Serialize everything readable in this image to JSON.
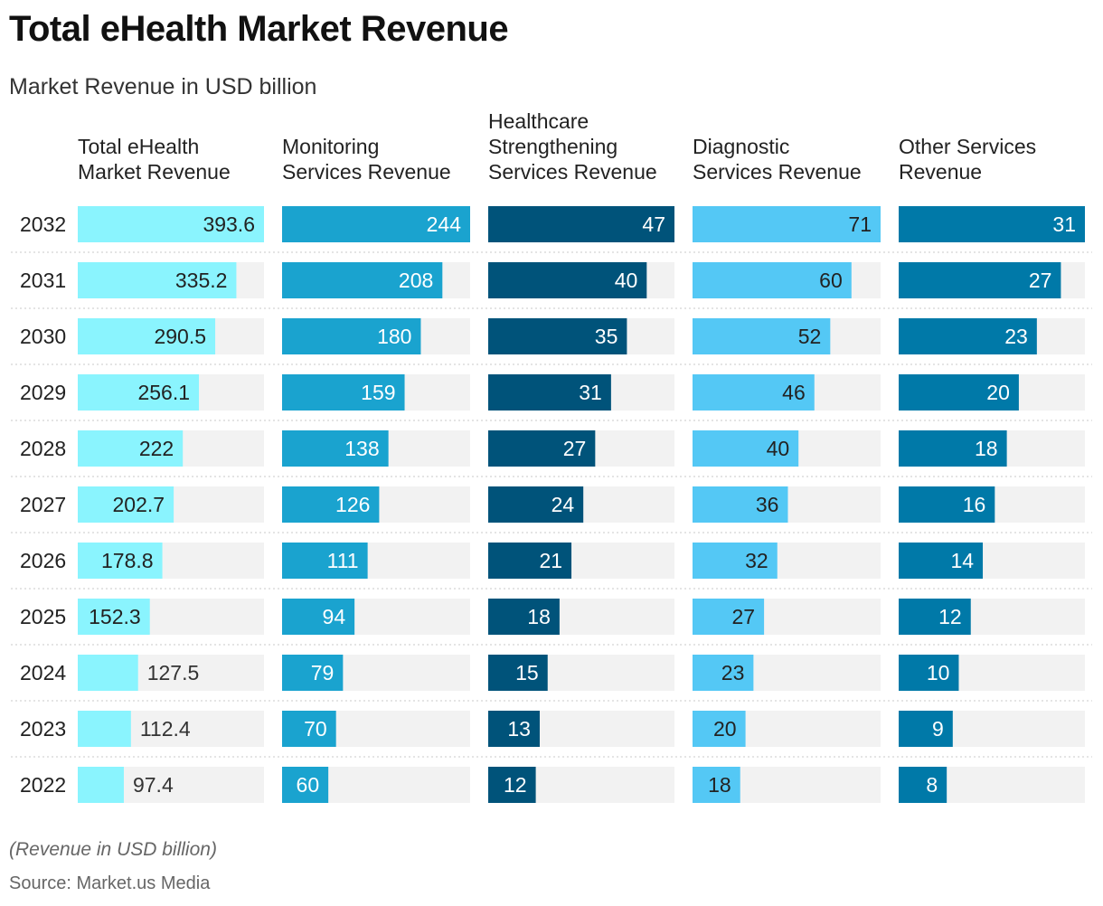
{
  "chart_data": {
    "type": "bar",
    "title": "Total eHealth Market Revenue",
    "subtitle": "Market Revenue in USD billion",
    "categories": [
      "2032",
      "2031",
      "2030",
      "2029",
      "2028",
      "2027",
      "2026",
      "2025",
      "2024",
      "2023",
      "2022"
    ],
    "series": [
      {
        "name": "Total eHealth Market Revenue",
        "label_lines": [
          "Total eHealth",
          "Market Revenue"
        ],
        "color": "#8af4fe",
        "values": [
          393.6,
          335.2,
          290.5,
          256.1,
          222,
          202.7,
          178.8,
          152.3,
          127.5,
          112.4,
          97.4
        ]
      },
      {
        "name": "Monitoring Services Revenue",
        "label_lines": [
          "Monitoring",
          "Services Revenue"
        ],
        "color": "#1aa3cf",
        "values": [
          244,
          208,
          180,
          159,
          138,
          126,
          111,
          94,
          79,
          70,
          60
        ]
      },
      {
        "name": "Healthcare Strengthening Services Revenue",
        "label_lines": [
          "Healthcare",
          "Strengthening",
          "Services Revenue"
        ],
        "color": "#00537a",
        "values": [
          47,
          40,
          35,
          31,
          27,
          24,
          21,
          18,
          15,
          13,
          12
        ]
      },
      {
        "name": "Diagnostic Services Revenue",
        "label_lines": [
          "Diagnostic",
          "Services Revenue"
        ],
        "color": "#54c8f5",
        "values": [
          71,
          60,
          52,
          46,
          40,
          36,
          32,
          27,
          23,
          20,
          18
        ]
      },
      {
        "name": "Other Services Revenue",
        "label_lines": [
          "Other Services",
          "Revenue"
        ],
        "color": "#0079a8",
        "values": [
          31,
          27,
          23,
          20,
          18,
          16,
          14,
          12,
          10,
          9,
          8
        ]
      }
    ],
    "value_label_colors": [
      "#222222",
      "#ffffff",
      "#ffffff",
      "#222222",
      "#ffffff"
    ],
    "track_color": "#f2f2f2",
    "note": "(Revenue in USD billion)",
    "source": "Source: Market.us Media"
  }
}
